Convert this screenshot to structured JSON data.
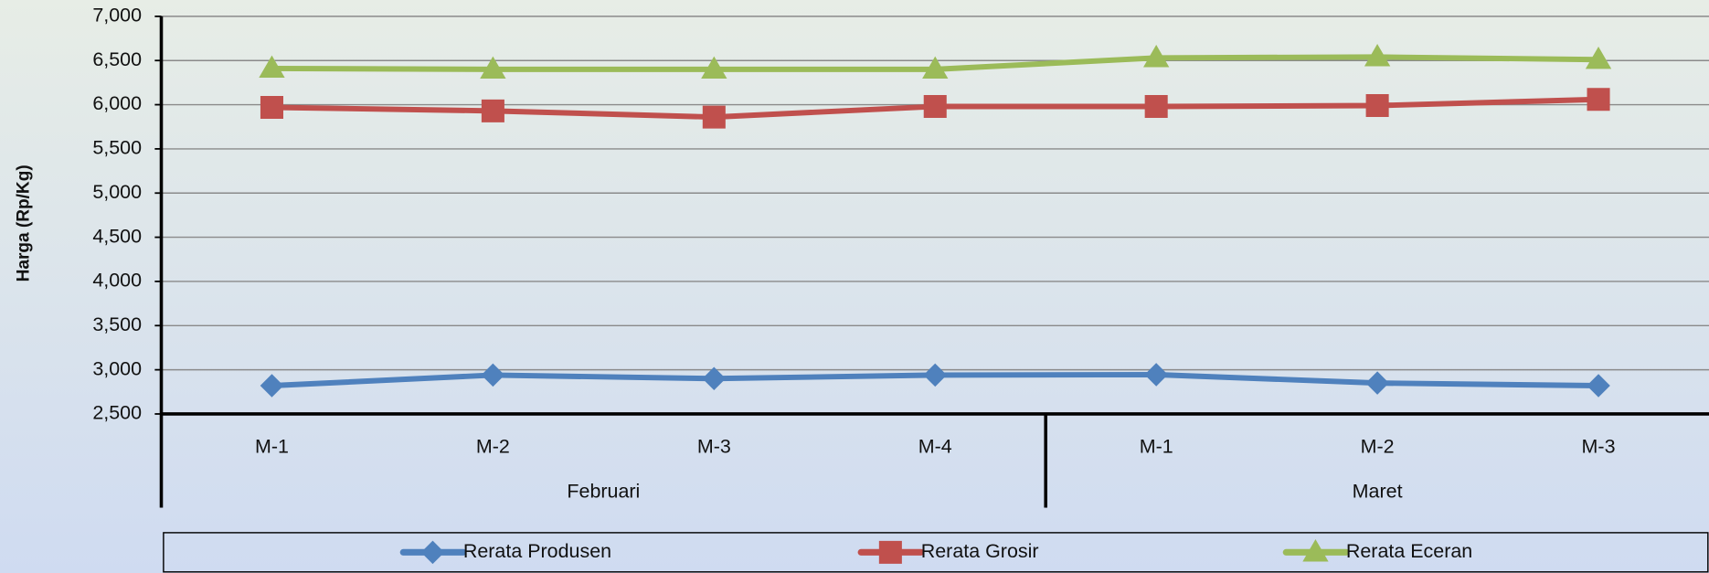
{
  "chart_data": {
    "type": "line",
    "y_label": "Harga (Rp/Kg)",
    "groups": [
      {
        "name": "Februari",
        "categories": [
          "M-1",
          "M-2",
          "M-3",
          "M-4"
        ]
      },
      {
        "name": "Maret",
        "categories": [
          "M-1",
          "M-2",
          "M-3"
        ]
      }
    ],
    "series": [
      {
        "name": "Rerata Produsen",
        "color": "#4f81bd",
        "marker": "diamond",
        "values": [
          2820,
          2940,
          2900,
          2940,
          2945,
          2850,
          2820
        ]
      },
      {
        "name": "Rerata Grosir",
        "color": "#c0504d",
        "marker": "square",
        "values": [
          5970,
          5930,
          5860,
          5980,
          5980,
          5990,
          6060
        ]
      },
      {
        "name": "Rerata Eceran",
        "color": "#9bbb59",
        "marker": "triangle",
        "values": [
          6410,
          6400,
          6400,
          6400,
          6530,
          6540,
          6510
        ]
      }
    ],
    "ylim": [
      2500,
      7000
    ],
    "yticks": [
      {
        "value": 2500,
        "label": "2,500"
      },
      {
        "value": 3000,
        "label": "3,000"
      },
      {
        "value": 3500,
        "label": "3,500"
      },
      {
        "value": 4000,
        "label": "4,000"
      },
      {
        "value": 4500,
        "label": "4,500"
      },
      {
        "value": 5000,
        "label": "5,000"
      },
      {
        "value": 5500,
        "label": "5,500"
      },
      {
        "value": 6000,
        "label": "6,000"
      },
      {
        "value": 6500,
        "label": "6,500"
      },
      {
        "value": 7000,
        "label": "7,000"
      }
    ],
    "grid": true,
    "legend": "bottom"
  }
}
